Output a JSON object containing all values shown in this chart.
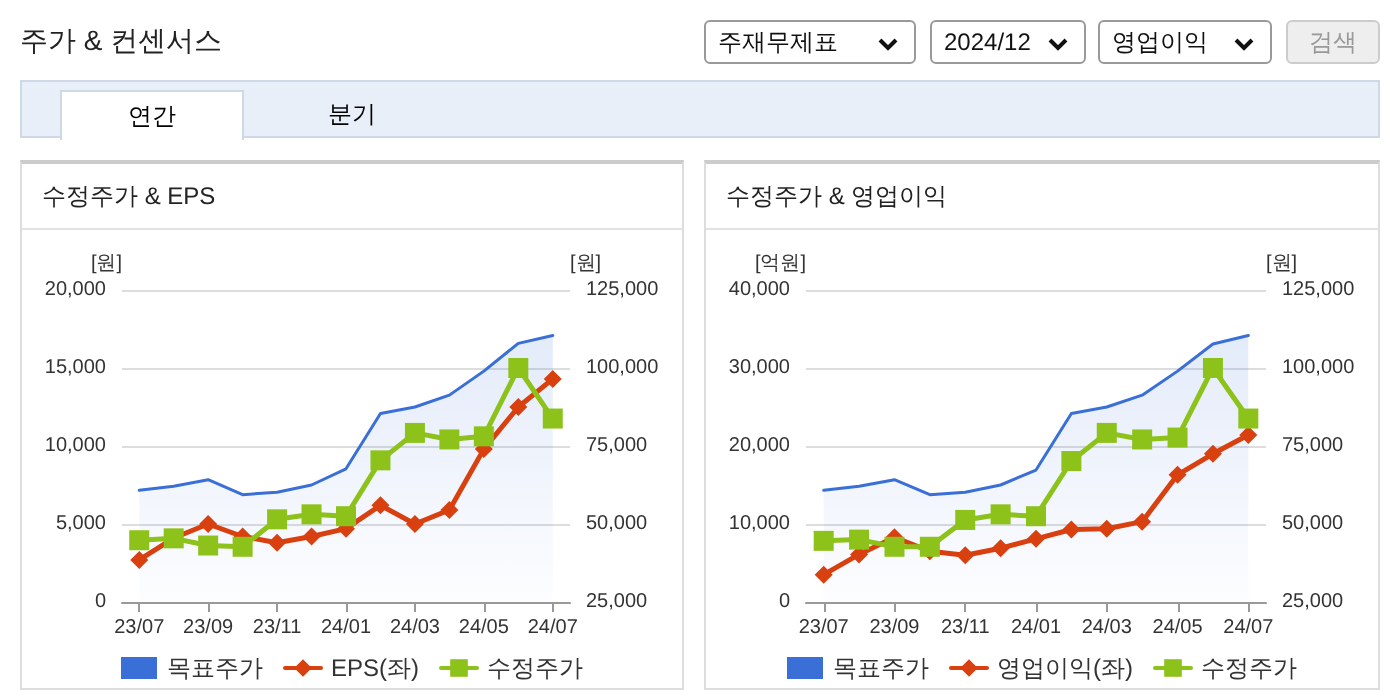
{
  "chart_data": [
    {
      "type": "line",
      "title": "수정주가 & EPS",
      "ylabel": "[원]",
      "y2label": "[원]",
      "annotations": [
        "주가 & 컨센서스",
        "주재무제표",
        "2024/12",
        "영업이익",
        "검색",
        "연간",
        "분기"
      ],
      "categories": [
        "23/07",
        null,
        "23/09",
        null,
        "23/11",
        null,
        "24/01",
        null,
        "24/03",
        null,
        "24/05",
        null,
        "24/07"
      ],
      "series": [
        {
          "name": "목표주가",
          "type": "area",
          "axis": "y2",
          "color": "#3a6fd8",
          "marker": "none",
          "values": [
            60800,
            62100,
            64200,
            59400,
            60200,
            62500,
            67700,
            85400,
            87500,
            91300,
            99000,
            107900,
            110400
          ]
        },
        {
          "name": "EPS(좌)",
          "type": "line",
          "color": "#d9400f",
          "marker": "diamond",
          "values": [
            2700,
            4100,
            5000,
            4200,
            3800,
            4200,
            4700,
            6200,
            5000,
            5900,
            9800,
            12500,
            14300
          ]
        },
        {
          "name": "수정주가",
          "type": "line",
          "axis": "y2",
          "color": "#8cc21a",
          "marker": "square",
          "values": [
            44800,
            45400,
            43100,
            42700,
            51500,
            53100,
            52500,
            70400,
            79200,
            77100,
            78100,
            100000,
            83800
          ]
        }
      ],
      "ylim": [
        0,
        20000
      ],
      "yticks": [
        0,
        {
          "value": 5000,
          "label": "5,000"
        },
        {
          "value": 10000,
          "label": "10,000"
        },
        {
          "value": 15000,
          "label": "15,000"
        },
        {
          "value": 20000,
          "label": "20,000"
        }
      ],
      "y2lim": [
        25000,
        125000
      ],
      "y2ticks": [
        {
          "value": 25000,
          "label": "25,000"
        },
        {
          "value": 50000,
          "label": "50,000"
        },
        {
          "value": 75000,
          "label": "75,000"
        },
        {
          "value": 100000,
          "label": "100,000"
        },
        {
          "value": 125000,
          "label": "125,000"
        }
      ],
      "grid": "y",
      "legend": "bottom"
    },
    {
      "type": "line",
      "title": "수정주가 & 영업이익",
      "ylabel": "[억원]",
      "y2label": "[원]",
      "categories": [
        "23/07",
        null,
        "23/09",
        null,
        "23/11",
        null,
        "24/01",
        null,
        "24/03",
        null,
        "24/05",
        null,
        "24/07"
      ],
      "series": [
        {
          "name": "목표주가",
          "type": "area",
          "axis": "y2",
          "color": "#3a6fd8",
          "marker": "none",
          "values": [
            60800,
            62100,
            64200,
            59400,
            60200,
            62500,
            67300,
            85400,
            87500,
            91300,
            99000,
            107700,
            110400
          ]
        },
        {
          "name": "영업이익(좌)",
          "type": "line",
          "color": "#d9400f",
          "marker": "diamond",
          "values": [
            3500,
            6100,
            8300,
            6500,
            6000,
            6900,
            8100,
            9300,
            9400,
            10300,
            16300,
            19000,
            21400
          ]
        },
        {
          "name": "수정주가",
          "type": "line",
          "axis": "y2",
          "color": "#8cc21a",
          "marker": "square",
          "values": [
            44600,
            45000,
            42700,
            42700,
            51300,
            53100,
            52500,
            70200,
            79200,
            77100,
            77700,
            100000,
            83800
          ]
        }
      ],
      "ylim": [
        0,
        40000
      ],
      "yticks": [
        0,
        {
          "value": 10000,
          "label": "10,000"
        },
        {
          "value": 20000,
          "label": "20,000"
        },
        {
          "value": 30000,
          "label": "30,000"
        },
        {
          "value": 40000,
          "label": "40,000"
        }
      ],
      "y2lim": [
        25000,
        125000
      ],
      "y2ticks": [
        {
          "value": 25000,
          "label": "25,000"
        },
        {
          "value": 50000,
          "label": "50,000"
        },
        {
          "value": 75000,
          "label": "75,000"
        },
        {
          "value": 100000,
          "label": "100,000"
        },
        {
          "value": 125000,
          "label": "125,000"
        }
      ],
      "grid": "y",
      "legend": "bottom"
    }
  ]
}
